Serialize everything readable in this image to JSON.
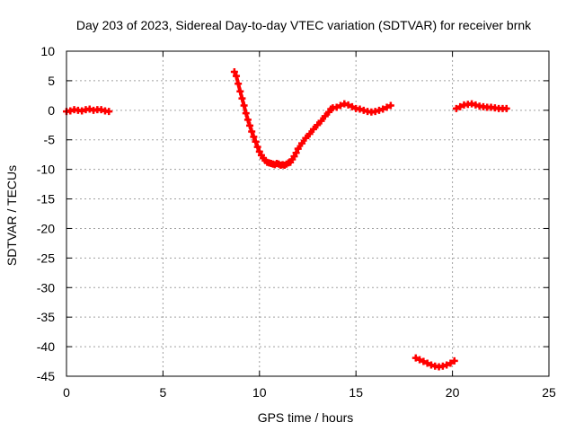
{
  "chart_data": {
    "type": "scatter",
    "title": "Day 203 of 2023, Sidereal Day-to-day VTEC variation (SDTVAR) for receiver brnk",
    "xlabel": "GPS time / hours",
    "ylabel": "SDTVAR / TECUs",
    "xlim": [
      0,
      25
    ],
    "ylim": [
      -45,
      10
    ],
    "xticks": [
      "0",
      "5",
      "10",
      "15",
      "20",
      "25"
    ],
    "yticks": [
      "10",
      "5",
      "0",
      "-5",
      "-10",
      "-15",
      "-20",
      "-25",
      "-30",
      "-35",
      "-40",
      "-45"
    ],
    "grid": true,
    "legend": "none",
    "marker": "+",
    "color": "#ff0000",
    "series": [
      {
        "x": [
          0.0,
          0.2,
          0.4,
          0.6,
          0.8,
          1.0,
          1.2,
          1.4,
          1.6,
          1.8,
          2.0,
          2.2
        ],
        "y": [
          -0.2,
          -0.1,
          0.1,
          0.0,
          -0.1,
          0.1,
          0.2,
          0.0,
          0.1,
          0.1,
          -0.1,
          -0.2
        ]
      },
      {
        "x": [
          8.7,
          8.8,
          8.9,
          9.0,
          9.1,
          9.2,
          9.3,
          9.4,
          9.5,
          9.6,
          9.7,
          9.8,
          9.9,
          10.0,
          10.1,
          10.2,
          10.3,
          10.4,
          10.5,
          10.6,
          10.7,
          10.8,
          10.9,
          11.0,
          11.1,
          11.2,
          11.3,
          11.4,
          11.5,
          11.6,
          11.7,
          11.8,
          11.9,
          12.0,
          12.2,
          12.4,
          12.6,
          12.8,
          13.0,
          13.2,
          13.4,
          13.6,
          13.7,
          13.8,
          14.0,
          14.2,
          14.4,
          14.6,
          14.8,
          15.0,
          15.2,
          15.4,
          15.6,
          15.8,
          16.0,
          16.2,
          16.4,
          16.6,
          16.8
        ],
        "y": [
          6.5,
          5.8,
          4.5,
          3.2,
          2.0,
          0.8,
          -0.5,
          -1.6,
          -2.6,
          -3.6,
          -4.5,
          -5.3,
          -6.2,
          -7.0,
          -7.6,
          -8.1,
          -8.5,
          -8.8,
          -8.9,
          -9.0,
          -9.1,
          -9.2,
          -9.0,
          -9.1,
          -9.3,
          -9.2,
          -9.3,
          -9.1,
          -8.9,
          -8.8,
          -8.3,
          -7.8,
          -7.2,
          -6.5,
          -5.6,
          -4.7,
          -4.0,
          -3.2,
          -2.5,
          -1.8,
          -1.0,
          -0.3,
          0.2,
          0.4,
          0.5,
          0.8,
          1.1,
          0.9,
          0.6,
          0.3,
          0.2,
          0.0,
          -0.2,
          -0.3,
          -0.2,
          0.0,
          0.2,
          0.5,
          0.8
        ]
      },
      {
        "x": [
          18.1,
          18.3,
          18.5,
          18.7,
          18.9,
          19.1,
          19.3,
          19.5,
          19.7,
          19.9,
          20.1
        ],
        "y": [
          -41.9,
          -42.2,
          -42.5,
          -42.8,
          -43.1,
          -43.3,
          -43.4,
          -43.3,
          -43.1,
          -42.8,
          -42.4
        ]
      },
      {
        "x": [
          20.2,
          20.4,
          20.6,
          20.8,
          21.0,
          21.2,
          21.4,
          21.6,
          21.8,
          22.0,
          22.2,
          22.4,
          22.6,
          22.8
        ],
        "y": [
          0.3,
          0.6,
          0.9,
          1.0,
          1.1,
          0.9,
          0.7,
          0.6,
          0.5,
          0.5,
          0.4,
          0.3,
          0.3,
          0.3
        ]
      }
    ]
  }
}
